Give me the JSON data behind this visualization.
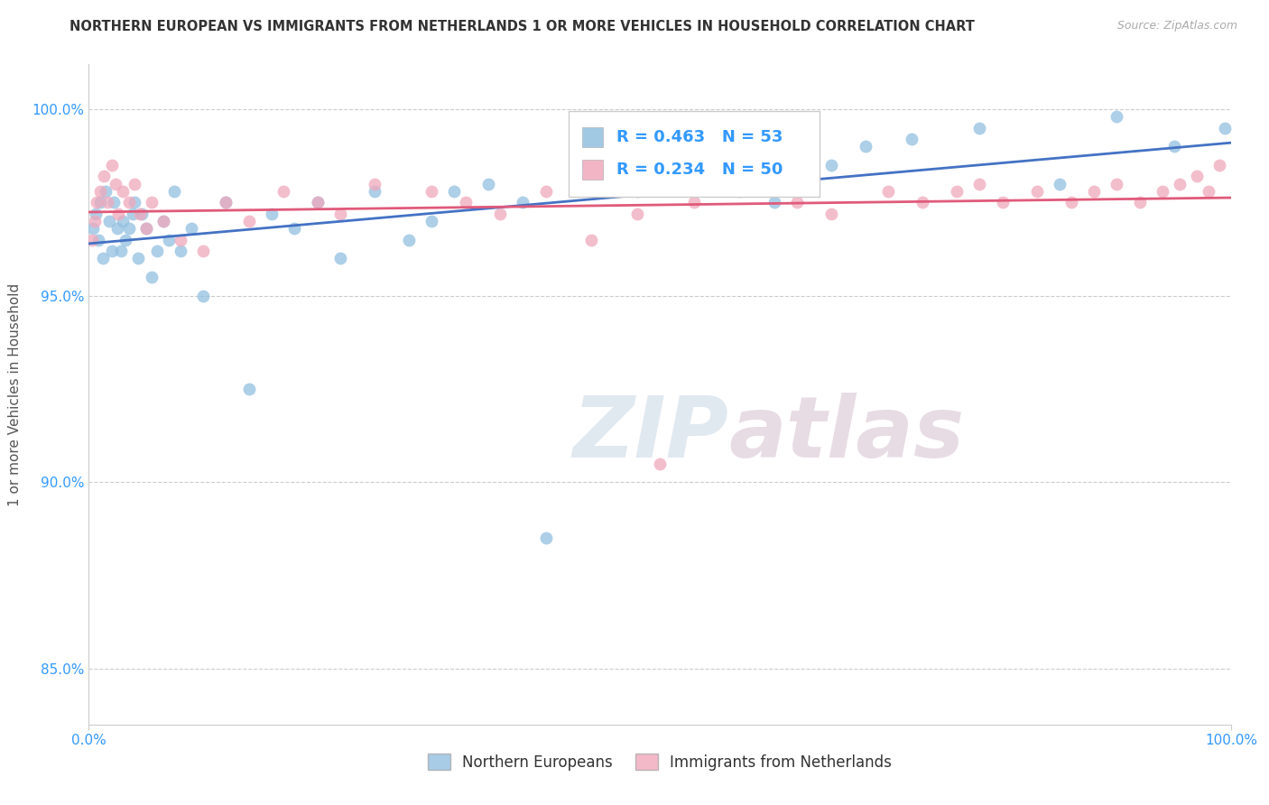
{
  "title": "NORTHERN EUROPEAN VS IMMIGRANTS FROM NETHERLANDS 1 OR MORE VEHICLES IN HOUSEHOLD CORRELATION CHART",
  "source": "Source: ZipAtlas.com",
  "ylabel": "1 or more Vehicles in Household",
  "y_ticks": [
    85.0,
    90.0,
    95.0,
    100.0
  ],
  "y_tick_labels": [
    "85.0%",
    "90.0%",
    "95.0%",
    "100.0%"
  ],
  "legend_blue_label": "Northern Europeans",
  "legend_pink_label": "Immigrants from Netherlands",
  "R_blue": 0.463,
  "N_blue": 53,
  "R_pink": 0.234,
  "N_pink": 50,
  "blue_color": "#92c0e0",
  "pink_color": "#f0a8bc",
  "trendline_blue": "#4472c4",
  "trendline_pink": "#e05a7a",
  "blue_points_x": [
    0.4,
    0.6,
    0.8,
    1.0,
    1.2,
    1.5,
    1.8,
    2.0,
    2.2,
    2.5,
    2.8,
    3.0,
    3.2,
    3.5,
    3.8,
    4.0,
    4.3,
    4.6,
    5.0,
    5.5,
    6.0,
    6.5,
    7.0,
    7.5,
    8.0,
    9.0,
    10.0,
    12.0,
    14.0,
    16.0,
    18.0,
    20.0,
    22.0,
    25.0,
    28.0,
    30.0,
    32.0,
    35.0,
    38.0,
    40.0,
    45.0,
    48.0,
    50.0,
    55.0,
    60.0,
    65.0,
    68.0,
    72.0,
    78.0,
    85.0,
    90.0,
    95.0,
    99.5
  ],
  "blue_points_y": [
    96.8,
    97.2,
    96.5,
    97.5,
    96.0,
    97.8,
    97.0,
    96.2,
    97.5,
    96.8,
    96.2,
    97.0,
    96.5,
    96.8,
    97.2,
    97.5,
    96.0,
    97.2,
    96.8,
    95.5,
    96.2,
    97.0,
    96.5,
    97.8,
    96.2,
    96.8,
    95.0,
    97.5,
    92.5,
    97.2,
    96.8,
    97.5,
    96.0,
    97.8,
    96.5,
    97.0,
    97.8,
    98.0,
    97.5,
    88.5,
    98.2,
    97.8,
    98.5,
    98.8,
    97.5,
    98.5,
    99.0,
    99.2,
    99.5,
    98.0,
    99.8,
    99.0,
    99.5
  ],
  "pink_points_x": [
    0.3,
    0.5,
    0.7,
    1.0,
    1.3,
    1.6,
    2.0,
    2.3,
    2.6,
    3.0,
    3.5,
    4.0,
    4.5,
    5.0,
    5.5,
    6.5,
    8.0,
    10.0,
    12.0,
    14.0,
    17.0,
    20.0,
    22.0,
    25.0,
    30.0,
    33.0,
    36.0,
    40.0,
    44.0,
    48.0,
    50.0,
    53.0,
    57.0,
    62.0,
    65.0,
    70.0,
    73.0,
    76.0,
    78.0,
    80.0,
    83.0,
    86.0,
    88.0,
    90.0,
    92.0,
    94.0,
    95.5,
    97.0,
    98.0,
    99.0
  ],
  "pink_points_y": [
    96.5,
    97.0,
    97.5,
    97.8,
    98.2,
    97.5,
    98.5,
    98.0,
    97.2,
    97.8,
    97.5,
    98.0,
    97.2,
    96.8,
    97.5,
    97.0,
    96.5,
    96.2,
    97.5,
    97.0,
    97.8,
    97.5,
    97.2,
    98.0,
    97.8,
    97.5,
    97.2,
    97.8,
    96.5,
    97.2,
    90.5,
    97.5,
    97.8,
    97.5,
    97.2,
    97.8,
    97.5,
    97.8,
    98.0,
    97.5,
    97.8,
    97.5,
    97.8,
    98.0,
    97.5,
    97.8,
    98.0,
    98.2,
    97.8,
    98.5
  ],
  "xlim": [
    0,
    100
  ],
  "ylim": [
    83.5,
    101.2
  ],
  "watermark_zip": "ZIP",
  "watermark_atlas": "atlas",
  "background_color": "#ffffff"
}
